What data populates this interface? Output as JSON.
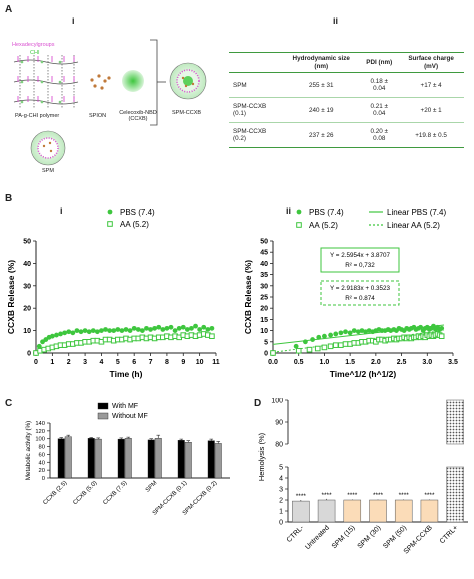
{
  "panels": {
    "A": "A",
    "B": "B",
    "C": "C",
    "D": "D",
    "i": "i",
    "ii": "ii"
  },
  "schematic": {
    "hexadecyl_label": "Hexadecylgroups",
    "chi_label": "CHI",
    "polymer_label": "PA-g-CHI polymer",
    "spion_label": "SPION",
    "drug_label": "Celecoxib-NBD (CCXB)",
    "spm_ccxb_label": "SPM-CCXB",
    "spm_label": "SPM"
  },
  "table": {
    "headers": [
      "",
      "Hydrodynamic size (nm)",
      "PDI (nm)",
      "Surface charge (mV)"
    ],
    "rows": [
      [
        "SPM",
        "255 ± 31",
        "0.18 ± 0.04",
        "+17 ± 4"
      ],
      [
        "SPM-CCXB (0.1)",
        "240 ± 19",
        "0.21 ± 0.04",
        "+20 ± 1"
      ],
      [
        "SPM-CCXB (0.2)",
        "237 ± 26",
        "0.20 ± 0.08",
        "+19.8 ± 0.5"
      ]
    ]
  },
  "chart_data": [
    {
      "type": "scatter",
      "panel": "B i",
      "xlabel": "Time (h)",
      "ylabel": "CCXB Release (%)",
      "xlim": [
        0,
        11
      ],
      "ylim": [
        0,
        50
      ],
      "xticks": [
        0,
        1,
        2,
        3,
        4,
        5,
        6,
        7,
        8,
        9,
        10,
        11
      ],
      "yticks": [
        0,
        10,
        20,
        30,
        40,
        50
      ],
      "series": [
        {
          "name": "PBS (7.4)",
          "marker": "filled-circle",
          "color": "#3ec63e",
          "x": [
            0,
            0.2,
            0.4,
            0.6,
            0.8,
            1,
            1.25,
            1.5,
            1.75,
            2,
            2.25,
            2.5,
            2.75,
            3,
            3.25,
            3.5,
            3.75,
            4,
            4.25,
            4.5,
            4.75,
            5,
            5.25,
            5.5,
            5.75,
            6,
            6.25,
            6.5,
            6.75,
            7,
            7.25,
            7.5,
            7.75,
            8,
            8.25,
            8.5,
            8.75,
            9,
            9.25,
            9.5,
            9.75,
            10,
            10.25,
            10.5,
            10.75
          ],
          "y": [
            0,
            3,
            5,
            6,
            7,
            7.5,
            8,
            8.5,
            9,
            9.5,
            9,
            10,
            9.5,
            10,
            9.5,
            10,
            9.5,
            10,
            10.5,
            10,
            10,
            10.5,
            10,
            10.5,
            10,
            11,
            10.5,
            10,
            11,
            10.5,
            11,
            11.5,
            10.5,
            11,
            11.5,
            10,
            11,
            11.5,
            10.5,
            11,
            12,
            10.5,
            11.5,
            10.5,
            11
          ]
        },
        {
          "name": "AA (5.2)",
          "marker": "open-square",
          "color": "#3ec63e",
          "x": [
            0,
            0.25,
            0.5,
            0.75,
            1,
            1.25,
            1.5,
            1.75,
            2,
            2.25,
            2.5,
            2.75,
            3,
            3.25,
            3.5,
            3.75,
            4,
            4.25,
            4.5,
            4.75,
            5,
            5.25,
            5.5,
            5.75,
            6,
            6.25,
            6.5,
            6.75,
            7,
            7.25,
            7.5,
            7.75,
            8,
            8.25,
            8.5,
            8.75,
            9,
            9.25,
            9.5,
            9.75,
            10,
            10.25,
            10.5,
            10.75
          ],
          "y": [
            0,
            1,
            1.5,
            2,
            2.5,
            3,
            3.5,
            3.5,
            4,
            4,
            4.5,
            4.5,
            5,
            5,
            5.5,
            5.5,
            5,
            6,
            6,
            5.5,
            6,
            6,
            6.5,
            6,
            6.5,
            6.5,
            7,
            6.5,
            7,
            6.5,
            7,
            7,
            7.5,
            7,
            7.5,
            7,
            8,
            7.5,
            8,
            7.5,
            8,
            8.5,
            8,
            7.5
          ]
        }
      ]
    },
    {
      "type": "scatter",
      "panel": "B ii",
      "xlabel": "Time^1/2 (h^1/2)",
      "ylabel": "CCXB Release (%)",
      "xlim": [
        0,
        3.5
      ],
      "ylim": [
        0,
        50
      ],
      "xticks": [
        "0.0",
        "0.5",
        "1.0",
        "1.5",
        "2.0",
        "2.5",
        "3.0",
        "3.5"
      ],
      "yticks": [
        0,
        5,
        10,
        15,
        20,
        25,
        30,
        35,
        40,
        45,
        50
      ],
      "legend": [
        "PBS (7.4)",
        "AA (5.2)",
        "Linear PBS (7.4)",
        "Linear AA (5.2)"
      ],
      "annotations": [
        {
          "eq": "Y = 2.5954x + 3.8707",
          "r2": "R² = 0,732",
          "style": "solid"
        },
        {
          "eq": "Y = 2.9183x + 0.3523",
          "r2": "R² = 0.874",
          "style": "dashed"
        }
      ],
      "fits": [
        {
          "slope": 2.5954,
          "intercept": 3.8707,
          "style": "solid"
        },
        {
          "slope": 2.9183,
          "intercept": 0.3523,
          "style": "dashed"
        }
      ],
      "series": [
        {
          "name": "PBS (7.4)",
          "marker": "filled-circle",
          "color": "#3ec63e",
          "x": [
            0,
            0.45,
            0.63,
            0.77,
            0.89,
            1,
            1.12,
            1.22,
            1.32,
            1.41,
            1.5,
            1.58,
            1.66,
            1.73,
            1.8,
            1.87,
            1.94,
            2,
            2.06,
            2.12,
            2.18,
            2.24,
            2.29,
            2.35,
            2.4,
            2.45,
            2.5,
            2.55,
            2.6,
            2.65,
            2.69,
            2.74,
            2.78,
            2.83,
            2.87,
            2.92,
            2.96,
            3,
            3.04,
            3.08,
            3.12,
            3.16,
            3.2,
            3.24,
            3.28
          ],
          "y": [
            0,
            3,
            5,
            6,
            7,
            7.5,
            8,
            8.5,
            9,
            9.5,
            9,
            10,
            9.5,
            10,
            9.5,
            10,
            9.5,
            10,
            10.5,
            10,
            10,
            10.5,
            10,
            10.5,
            10,
            11,
            10.5,
            10,
            11,
            10.5,
            11,
            11.5,
            10.5,
            11,
            11.5,
            10,
            11,
            11.5,
            10.5,
            11,
            12,
            10.5,
            11.5,
            10.5,
            11
          ]
        },
        {
          "name": "AA (5.2)",
          "marker": "open-square",
          "color": "#3ec63e",
          "x": [
            0,
            0.5,
            0.71,
            0.87,
            1,
            1.12,
            1.22,
            1.32,
            1.41,
            1.5,
            1.58,
            1.66,
            1.73,
            1.8,
            1.87,
            1.94,
            2,
            2.06,
            2.12,
            2.18,
            2.24,
            2.29,
            2.35,
            2.4,
            2.45,
            2.5,
            2.55,
            2.6,
            2.65,
            2.69,
            2.74,
            2.78,
            2.83,
            2.87,
            2.92,
            2.96,
            3,
            3.04,
            3.08,
            3.12,
            3.16,
            3.2,
            3.24,
            3.28
          ],
          "y": [
            0,
            1,
            1.5,
            2,
            2.5,
            3,
            3.5,
            3.5,
            4,
            4,
            4.5,
            4.5,
            5,
            5,
            5.5,
            5.5,
            5,
            6,
            6,
            5.5,
            6,
            6,
            6.5,
            6,
            6.5,
            6.5,
            7,
            6.5,
            7,
            6.5,
            7,
            7,
            7.5,
            7,
            7.5,
            7,
            8,
            7.5,
            8,
            7.5,
            8,
            8.5,
            8,
            7.5
          ]
        }
      ]
    },
    {
      "type": "bar",
      "panel": "C",
      "ylabel": "Metabolic activity (%)",
      "ylim": [
        0,
        140
      ],
      "yticks": [
        0,
        20,
        40,
        60,
        80,
        100,
        120,
        140
      ],
      "categories": [
        "CCXB (2.5)",
        "CCXB (5.0)",
        "CCXB (7.5)",
        "SPM",
        "SPM-CCXB (0.1)",
        "SPM-CCXB (0.2)"
      ],
      "series": [
        {
          "name": "With MF",
          "color": "#000000",
          "values": [
            100,
            101,
            99,
            97,
            96,
            95
          ],
          "errors": [
            3,
            2,
            3,
            3,
            3,
            4
          ]
        },
        {
          "name": "Without MF",
          "color": "#9a9a9a",
          "values": [
            105,
            99,
            101,
            101,
            91,
            88
          ],
          "errors": [
            4,
            3,
            3,
            8,
            4,
            5
          ]
        }
      ]
    },
    {
      "type": "bar",
      "panel": "D",
      "ylabel": "Hemolysis (%)",
      "ylim": [
        0,
        100
      ],
      "axis_break": [
        5,
        80
      ],
      "yticks": [
        0,
        1,
        2,
        3,
        4,
        5,
        80,
        90,
        100
      ],
      "categories": [
        "CTRL-",
        "Untreated",
        "SPM (15)",
        "SPM (30)",
        "SPM (50)",
        "SPM-CCXB",
        "CTRL+"
      ],
      "values": [
        1.9,
        2.0,
        2.0,
        2.0,
        2.0,
        2.0,
        100
      ],
      "errors": [
        0.1,
        0.1,
        0.05,
        0.05,
        0.05,
        0.05,
        0
      ],
      "colors": [
        "#d8d8d8",
        "#d8d8d8",
        "#fbdcb8",
        "#fbdcb8",
        "#fbdcb8",
        "#fbdcb8",
        "#c9c9c9"
      ],
      "significance": [
        "****",
        "****",
        "****",
        "****",
        "****",
        "****",
        ""
      ]
    }
  ]
}
